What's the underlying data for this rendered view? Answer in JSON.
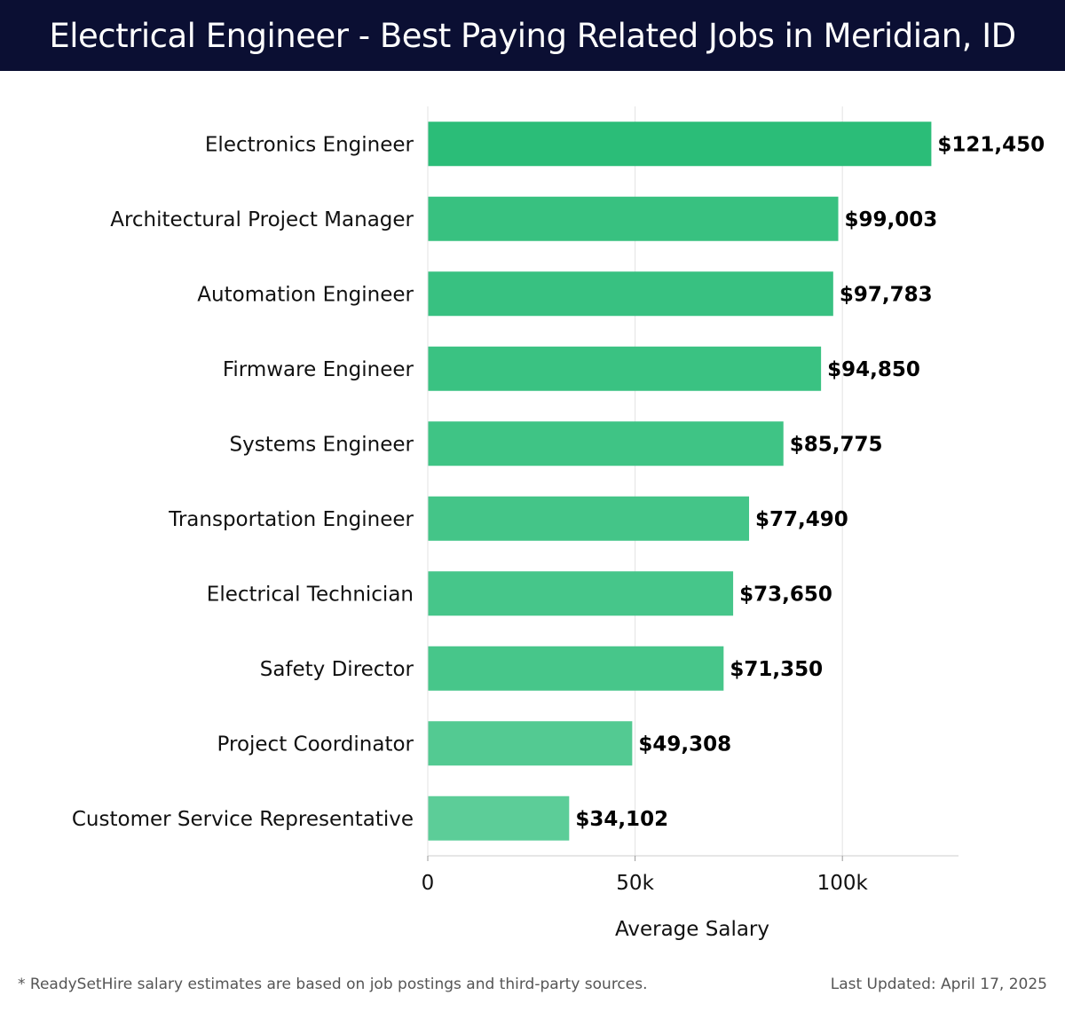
{
  "header": {
    "title": "Electrical Engineer - Best Paying Related Jobs in Meridian, ID"
  },
  "chart_data": {
    "type": "bar",
    "orientation": "horizontal",
    "categories": [
      "Electronics Engineer",
      "Architectural Project Manager",
      "Automation Engineer",
      "Firmware Engineer",
      "Systems Engineer",
      "Transportation Engineer",
      "Electrical Technician",
      "Safety Director",
      "Project Coordinator",
      "Customer Service Representative"
    ],
    "values": [
      121450,
      99003,
      97783,
      94850,
      85775,
      77490,
      73650,
      71350,
      49308,
      34102
    ],
    "value_labels": [
      "$121,450",
      "$99,003",
      "$97,783",
      "$94,850",
      "$85,775",
      "$77,490",
      "$73,650",
      "$71,350",
      "$49,308",
      "$34,102"
    ],
    "xlabel": "Average Salary",
    "xlim": [
      0,
      128000
    ],
    "x_ticks": [
      0,
      50000,
      100000
    ],
    "x_tick_labels": [
      "0",
      "50k",
      "100k"
    ],
    "grid": "vertical",
    "colors": {
      "bar_high": "#2bbd78",
      "bar_low": "#5ccd98",
      "header_bg": "#0b0f33"
    }
  },
  "footer": {
    "note": "* ReadySetHire salary estimates are based on job postings and third-party sources.",
    "updated": "Last Updated: April 17, 2025"
  }
}
